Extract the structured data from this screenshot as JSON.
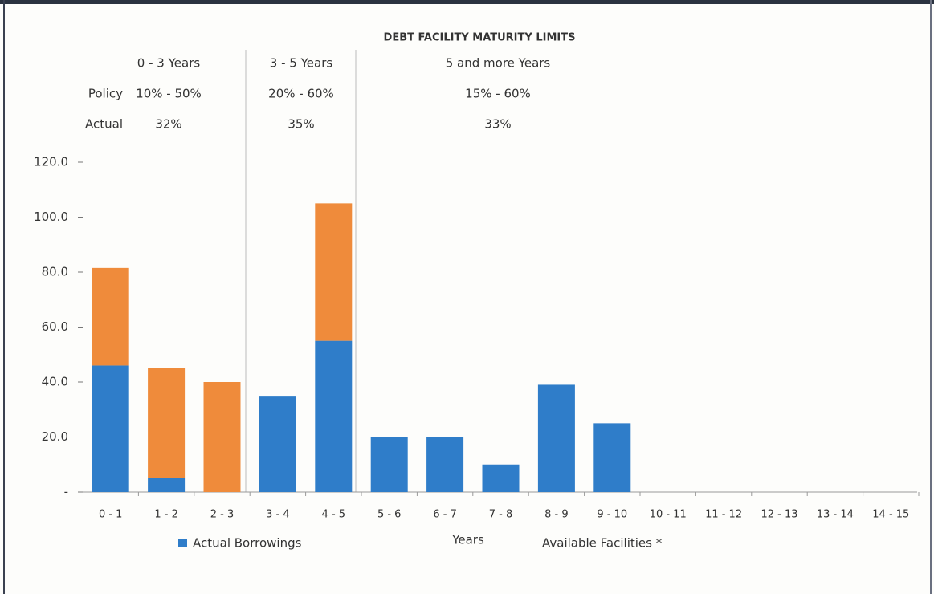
{
  "chart_data": {
    "type": "stacked_bar",
    "title": "DEBT FACILITY MATURITY LIMITS",
    "row_labels": [
      "Policy",
      "Actual"
    ],
    "bands": [
      {
        "name": "0 - 3 Years",
        "policy": "10% - 50%",
        "actual": "32%"
      },
      {
        "name": "3 - 5 Years",
        "policy": "20% - 60%",
        "actual": "35%"
      },
      {
        "name": "5 and more Years",
        "policy": "15% - 60%",
        "actual": "33%"
      }
    ],
    "x_label": "Years",
    "categories": [
      "0 - 1",
      "1 - 2",
      "2 - 3",
      "3 - 4",
      "4 - 5",
      "5 - 6",
      "6 - 7",
      "7 - 8",
      "8 - 9",
      "9 - 10",
      "10 - 11",
      "11 - 12",
      "12 - 13",
      "13 - 14",
      "14 - 15"
    ],
    "series": [
      {
        "name": "Actual Borrowings",
        "color": "#2f7dc9",
        "values": [
          46,
          5,
          0,
          35,
          55,
          20,
          20,
          10,
          39,
          25,
          0,
          0,
          0,
          0,
          0
        ]
      },
      {
        "name": "Available Facilities *",
        "color": "#ef8b3b",
        "values": [
          35.5,
          40,
          40,
          0,
          50,
          0,
          0,
          0,
          0,
          0,
          0,
          0,
          0,
          0,
          0
        ]
      }
    ],
    "ylim": [
      0,
      120
    ],
    "yticks": [
      {
        "value": 0,
        "label": "-"
      },
      {
        "value": 20,
        "label": "20.0"
      },
      {
        "value": 40,
        "label": "40.0"
      },
      {
        "value": 60,
        "label": "60.0"
      },
      {
        "value": 80,
        "label": "80.0"
      },
      {
        "value": 100,
        "label": "100.0"
      },
      {
        "value": 120,
        "label": "120.0"
      }
    ]
  }
}
